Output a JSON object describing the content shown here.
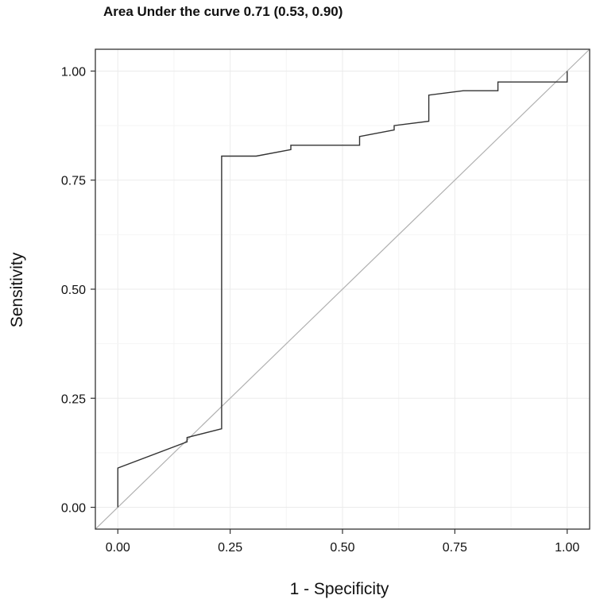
{
  "chart_data": {
    "type": "line",
    "title": "Area Under the curve 0.71 (0.53, 0.90)",
    "xlabel": "1 - Specificity",
    "ylabel": "Sensitivity",
    "xlim": [
      -0.05,
      1.05
    ],
    "ylim": [
      -0.05,
      1.05
    ],
    "x_ticks": [
      0.0,
      0.25,
      0.5,
      0.75,
      1.0
    ],
    "x_tick_labels": [
      "0.00",
      "0.25",
      "0.50",
      "0.75",
      "1.00"
    ],
    "y_ticks": [
      0.0,
      0.25,
      0.5,
      0.75,
      1.0
    ],
    "y_tick_labels": [
      "0.00",
      "0.25",
      "0.50",
      "0.75",
      "1.00"
    ],
    "grid": true,
    "legend": "none",
    "colors": {
      "curve": "#333333",
      "diagonal": "#b0b0b0",
      "grid": "#ebebeb",
      "frame": "#333333"
    },
    "series": [
      {
        "x": [
          0.0,
          0.0,
          0.154,
          0.154,
          0.231,
          0.231,
          0.308,
          0.385,
          0.385,
          0.538,
          0.538,
          0.615,
          0.615,
          0.692,
          0.692,
          0.769,
          0.846,
          0.846,
          1.0,
          1.0
        ],
        "y": [
          0.0,
          0.09,
          0.15,
          0.16,
          0.18,
          0.805,
          0.805,
          0.82,
          0.83,
          0.83,
          0.85,
          0.865,
          0.875,
          0.885,
          0.945,
          0.955,
          0.955,
          0.975,
          0.975,
          1.0
        ]
      }
    ],
    "reference_line": {
      "x": [
        0.0,
        1.0
      ],
      "y": [
        0.0,
        1.0
      ]
    }
  }
}
